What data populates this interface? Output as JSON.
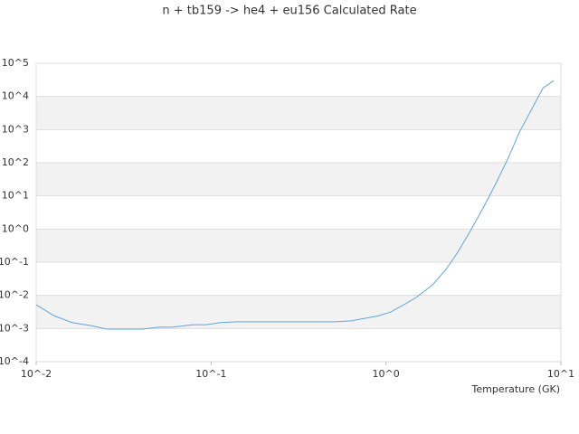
{
  "chart_data": {
    "type": "line",
    "title": "n + tb159 -> he4 + eu156 Calculated Rate",
    "x_label": "Temperature (GK)",
    "x": [
      0.01,
      0.0127,
      0.0161,
      0.0204,
      0.0254,
      0.0317,
      0.0404,
      0.0505,
      0.0597,
      0.0794,
      0.0937,
      0.112,
      0.141,
      0.509,
      0.63,
      0.904,
      1.07,
      1.27,
      1.49,
      1.85,
      2.2,
      2.54,
      3.0,
      3.6,
      4.2,
      4.96,
      5.8,
      6.7,
      7.9,
      9.1
    ],
    "values": [
      0.0052,
      0.0024,
      0.0015,
      0.00123,
      0.00096,
      0.00096,
      0.00096,
      0.0011,
      0.0011,
      0.0013,
      0.0013,
      0.0015,
      0.0016,
      0.0016,
      0.0017,
      0.0024,
      0.0032,
      0.0053,
      0.0087,
      0.021,
      0.06,
      0.18,
      0.79,
      4.4,
      21,
      128,
      850,
      3500,
      18000,
      30000
    ],
    "color": "#5ea4e6",
    "xscale": "log",
    "yscale": "log",
    "xlim": [
      0.01,
      10
    ],
    "xticks": [
      {
        "value": 0.01,
        "label": "10^-2"
      },
      {
        "value": 0.1,
        "label": "10^-1"
      },
      {
        "value": 1,
        "label": "10^0"
      },
      {
        "value": 10,
        "label": "10^1"
      }
    ],
    "ylim": [
      0.0001,
      100000
    ],
    "yticks": [
      {
        "value": 0.0001,
        "label": "10^-4"
      },
      {
        "value": 0.001,
        "label": "10^-3"
      },
      {
        "value": 0.01,
        "label": "10^-2"
      },
      {
        "value": 0.1,
        "label": "10^-1"
      },
      {
        "value": 1,
        "label": "10^0"
      },
      {
        "value": 10,
        "label": "10^1"
      },
      {
        "value": 100,
        "label": "10^2"
      },
      {
        "value": 1000,
        "label": "10^3"
      },
      {
        "value": 10000,
        "label": "10^4"
      },
      {
        "value": 100000,
        "label": "10^5"
      }
    ],
    "grid": true,
    "band_color": "#f2f2f2"
  }
}
